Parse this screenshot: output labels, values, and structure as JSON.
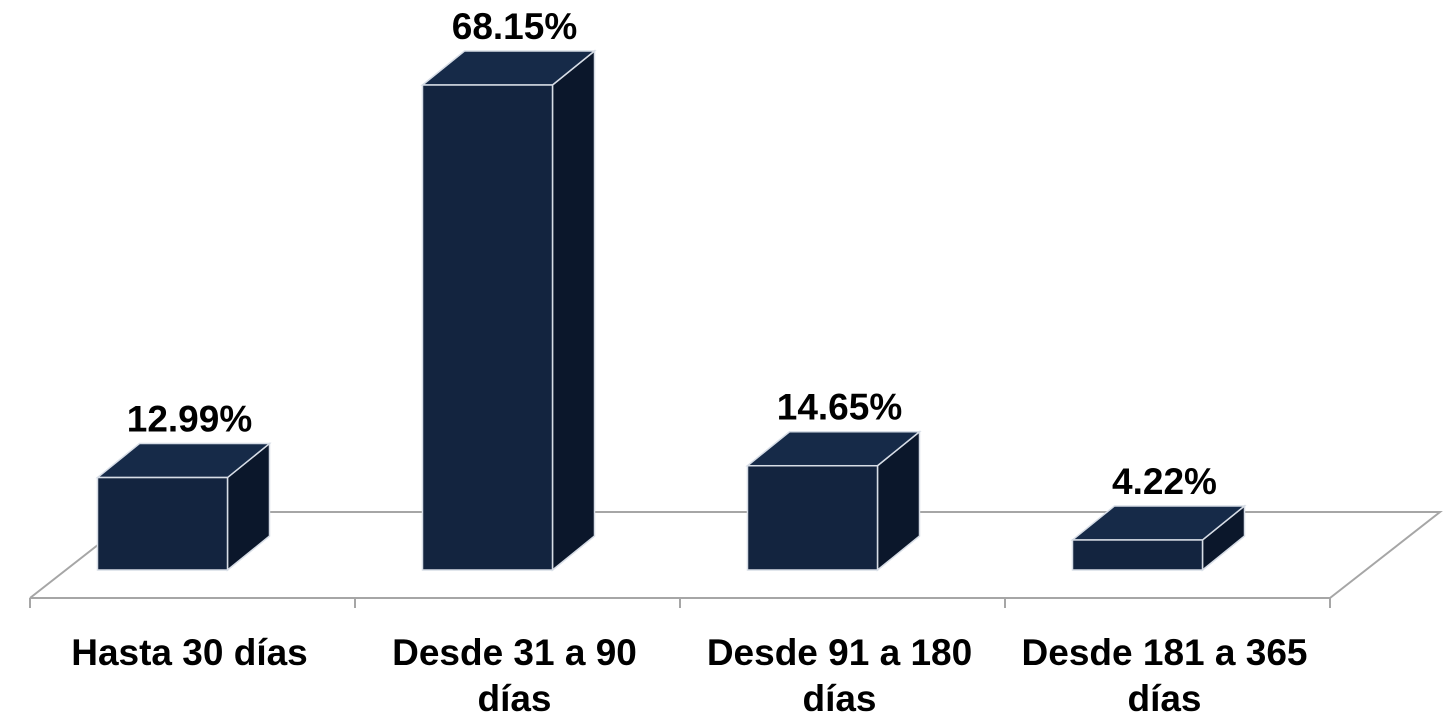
{
  "chart_data": {
    "type": "bar",
    "style": "3d-column",
    "categories": [
      [
        "Hasta 30 días"
      ],
      [
        "Desde 31 a 90",
        "días"
      ],
      [
        "Desde 91 a 180",
        "días"
      ],
      [
        "Desde 181 a 365",
        "días"
      ]
    ],
    "values": [
      12.99,
      68.15,
      14.65,
      4.22
    ],
    "value_labels": [
      "12.99%",
      "68.15%",
      "14.65%",
      "4.22%"
    ],
    "title": "",
    "xlabel": "",
    "ylabel": "",
    "ylim": [
      0,
      70
    ],
    "grid": false,
    "legend": "none",
    "colors": {
      "bar_front": "#13243f",
      "bar_side": "#0b172b",
      "bar_top": "#162a48",
      "bar_edge": "#d7dde6",
      "floor_line": "#a6a6a6"
    }
  }
}
